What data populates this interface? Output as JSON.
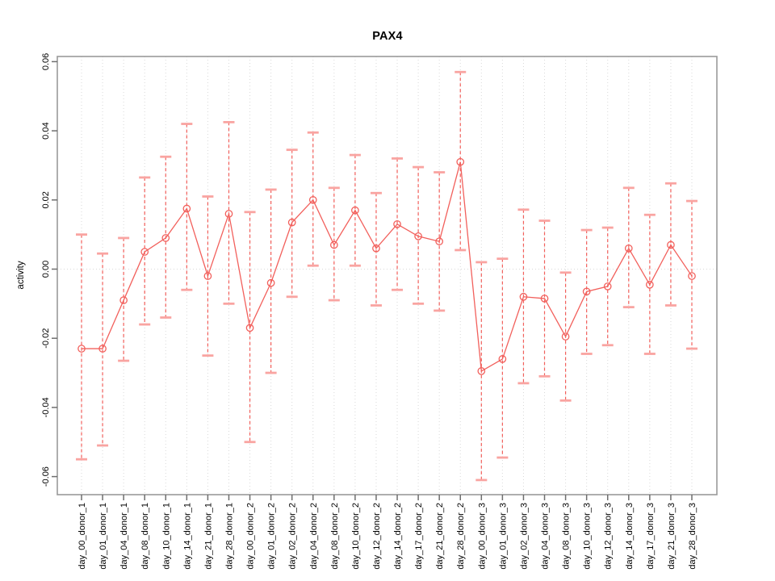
{
  "chart_data": {
    "type": "scatter",
    "title": "PAX4",
    "xlabel": "",
    "ylabel": "activity",
    "ylim": [
      -0.0615,
      0.0615
    ],
    "yticks": {
      "values": [
        0.06,
        0.04,
        0.02,
        0.0,
        -0.02,
        -0.04,
        -0.06
      ],
      "labels": [
        "0.06",
        "0.04",
        "0.02",
        "0.00",
        "-0.02",
        "-0.04",
        "-0.06"
      ]
    },
    "grid": "dotted vertical gridline at every category; dotted horizontal line at y=0; no legend",
    "point_style": "open-circle",
    "categories": [
      "day_00_donor_1",
      "day_01_donor_1",
      "day_04_donor_1",
      "day_08_donor_1",
      "day_10_donor_1",
      "day_14_donor_1",
      "day_21_donor_1",
      "day_28_donor_1",
      "day_00_donor_2",
      "day_01_donor_2",
      "day_02_donor_2",
      "day_04_donor_2",
      "day_08_donor_2",
      "day_10_donor_2",
      "day_12_donor_2",
      "day_14_donor_2",
      "day_17_donor_2",
      "day_21_donor_2",
      "day_28_donor_2",
      "day_00_donor_3",
      "day_01_donor_3",
      "day_02_donor_3",
      "day_04_donor_3",
      "day_08_donor_3",
      "day_10_donor_3",
      "day_12_donor_3",
      "day_14_donor_3",
      "day_17_donor_3",
      "day_21_donor_3",
      "day_28_donor_3"
    ],
    "series": [
      {
        "name": "activity",
        "values": [
          -0.023,
          -0.023,
          -0.009,
          0.005,
          0.009,
          0.0175,
          -0.002,
          0.016,
          -0.017,
          -0.004,
          0.0135,
          0.02,
          0.007,
          0.017,
          0.006,
          0.013,
          0.0095,
          0.008,
          0.031,
          -0.0295,
          -0.026,
          -0.008,
          -0.0085,
          -0.0195,
          -0.0065,
          -0.005,
          0.006,
          -0.0045,
          0.007,
          -0.002
        ],
        "error_low": [
          -0.055,
          -0.051,
          -0.0265,
          -0.016,
          -0.014,
          -0.006,
          -0.025,
          -0.01,
          -0.05,
          -0.03,
          -0.008,
          0.001,
          -0.009,
          0.001,
          -0.0105,
          -0.006,
          -0.01,
          -0.012,
          0.0055,
          -0.061,
          -0.0545,
          -0.033,
          -0.031,
          -0.038,
          -0.0245,
          -0.022,
          -0.011,
          -0.0245,
          -0.0105,
          -0.023
        ],
        "error_high": [
          0.01,
          0.0045,
          0.009,
          0.0265,
          0.0325,
          0.042,
          0.021,
          0.0425,
          0.0165,
          0.023,
          0.0345,
          0.0395,
          0.0235,
          0.033,
          0.022,
          0.032,
          0.0295,
          0.028,
          0.057,
          0.002,
          0.003,
          0.0172,
          0.014,
          -0.001,
          0.0113,
          0.012,
          0.0235,
          0.0157,
          0.0248,
          0.0197
        ]
      }
    ],
    "colors": {
      "series": "#f2605c",
      "error_cap": "#f9a4a1",
      "grid": "#d9d9d9",
      "frame": "#9a9a9a",
      "tick": "#6e6e6e",
      "text": "#000000"
    }
  }
}
